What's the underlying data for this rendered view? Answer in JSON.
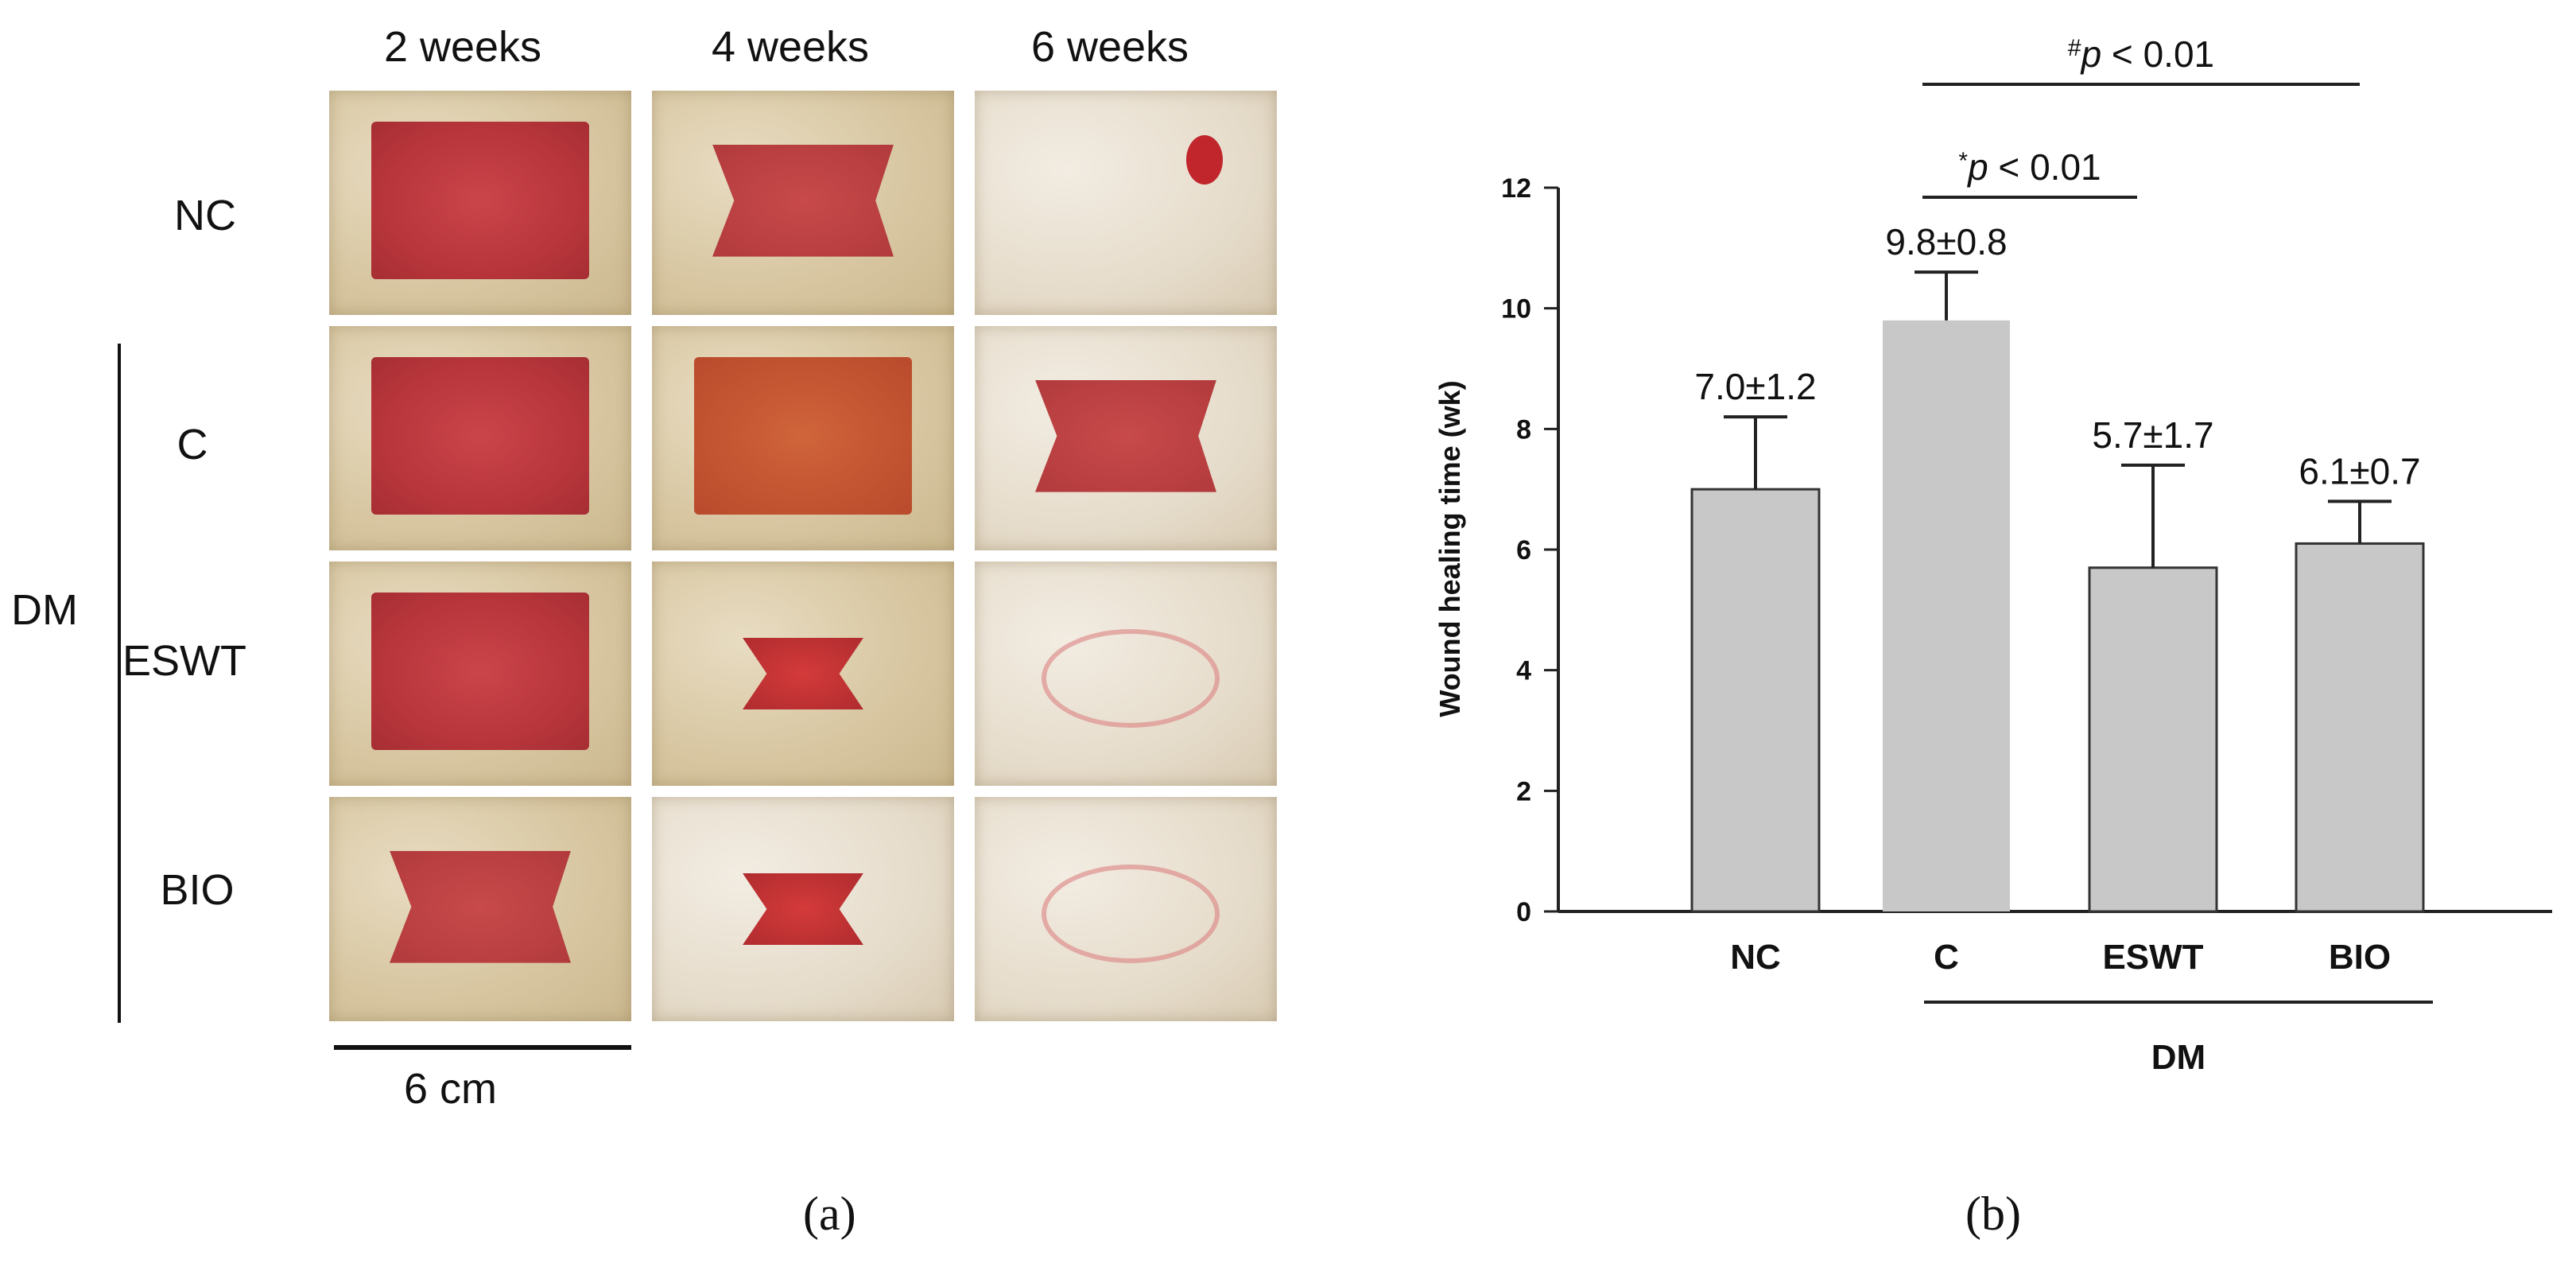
{
  "panel_a": {
    "columns": [
      "2 weeks",
      "4 weeks",
      "6 weeks"
    ],
    "rows": [
      "NC",
      "C",
      "ESWT",
      "BIO"
    ],
    "group_label": "DM",
    "scale_label": "6 cm",
    "panel_label": "(a)"
  },
  "panel_b": {
    "panel_label": "(b)"
  },
  "chart_data": {
    "type": "bar",
    "categories": [
      "NC",
      "C",
      "ESWT",
      "BIO"
    ],
    "values": [
      7.0,
      9.8,
      5.7,
      6.1
    ],
    "errors": [
      1.2,
      0.8,
      1.7,
      0.7
    ],
    "data_labels": [
      "7.0±1.2",
      "9.8±0.8",
      "5.7±1.7",
      "6.1±0.7"
    ],
    "ylabel": "Wound healing time (wk)",
    "ylim": [
      0,
      12
    ],
    "yticks": [
      0,
      2,
      4,
      6,
      8,
      10,
      12
    ],
    "group_label": "DM",
    "annotations": [
      {
        "text": "*p < 0.01",
        "from": "C",
        "to": "ESWT"
      },
      {
        "text": "#p < 0.01",
        "from": "C",
        "to": "BIO"
      }
    ],
    "colors": {
      "bar": "#c8c8c8",
      "edge": "#333333"
    },
    "grid": false
  }
}
